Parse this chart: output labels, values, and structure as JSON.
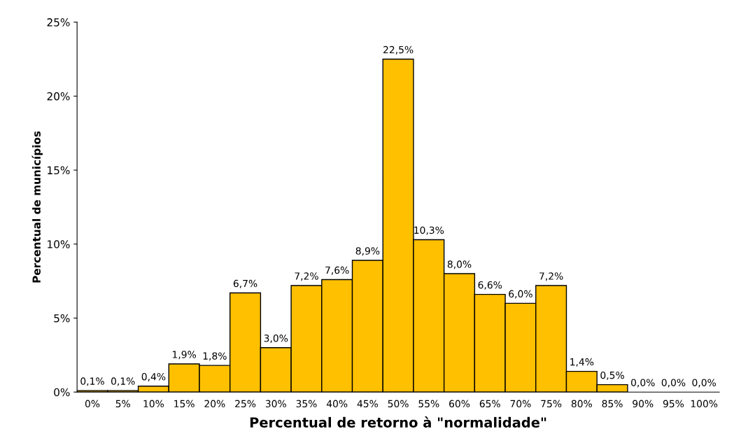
{
  "chart_data": {
    "type": "bar",
    "xlabel": "Percentual de retorno à \"normalidade\"",
    "ylabel": "Percentual de municípios",
    "categories": [
      "0%",
      "5%",
      "10%",
      "15%",
      "20%",
      "25%",
      "30%",
      "35%",
      "40%",
      "45%",
      "50%",
      "55%",
      "60%",
      "65%",
      "70%",
      "75%",
      "80%",
      "85%",
      "90%",
      "95%",
      "100%"
    ],
    "values": [
      0.1,
      0.1,
      0.4,
      1.9,
      1.8,
      6.7,
      3.0,
      7.2,
      7.6,
      8.9,
      22.5,
      10.3,
      8.0,
      6.6,
      6.0,
      7.2,
      1.4,
      0.5,
      0.0,
      0.0,
      0.0
    ],
    "value_labels": [
      "0,1%",
      "0,1%",
      "0,4%",
      "1,9%",
      "1,8%",
      "6,7%",
      "3,0%",
      "7,2%",
      "7,6%",
      "8,9%",
      "22,5%",
      "10,3%",
      "8,0%",
      "6,6%",
      "6,0%",
      "7,2%",
      "1,4%",
      "0,5%",
      "0,0%",
      "0,0%",
      "0,0%"
    ],
    "color": "#ffc000",
    "ylim": [
      0,
      25
    ],
    "yticks": [
      {
        "value": 0,
        "label": "0%"
      },
      {
        "value": 5,
        "label": "5%"
      },
      {
        "value": 10,
        "label": "10%"
      },
      {
        "value": 15,
        "label": "15%"
      },
      {
        "value": 20,
        "label": "20%"
      },
      {
        "value": 25,
        "label": "25%"
      }
    ],
    "grid": false,
    "legend": false
  }
}
